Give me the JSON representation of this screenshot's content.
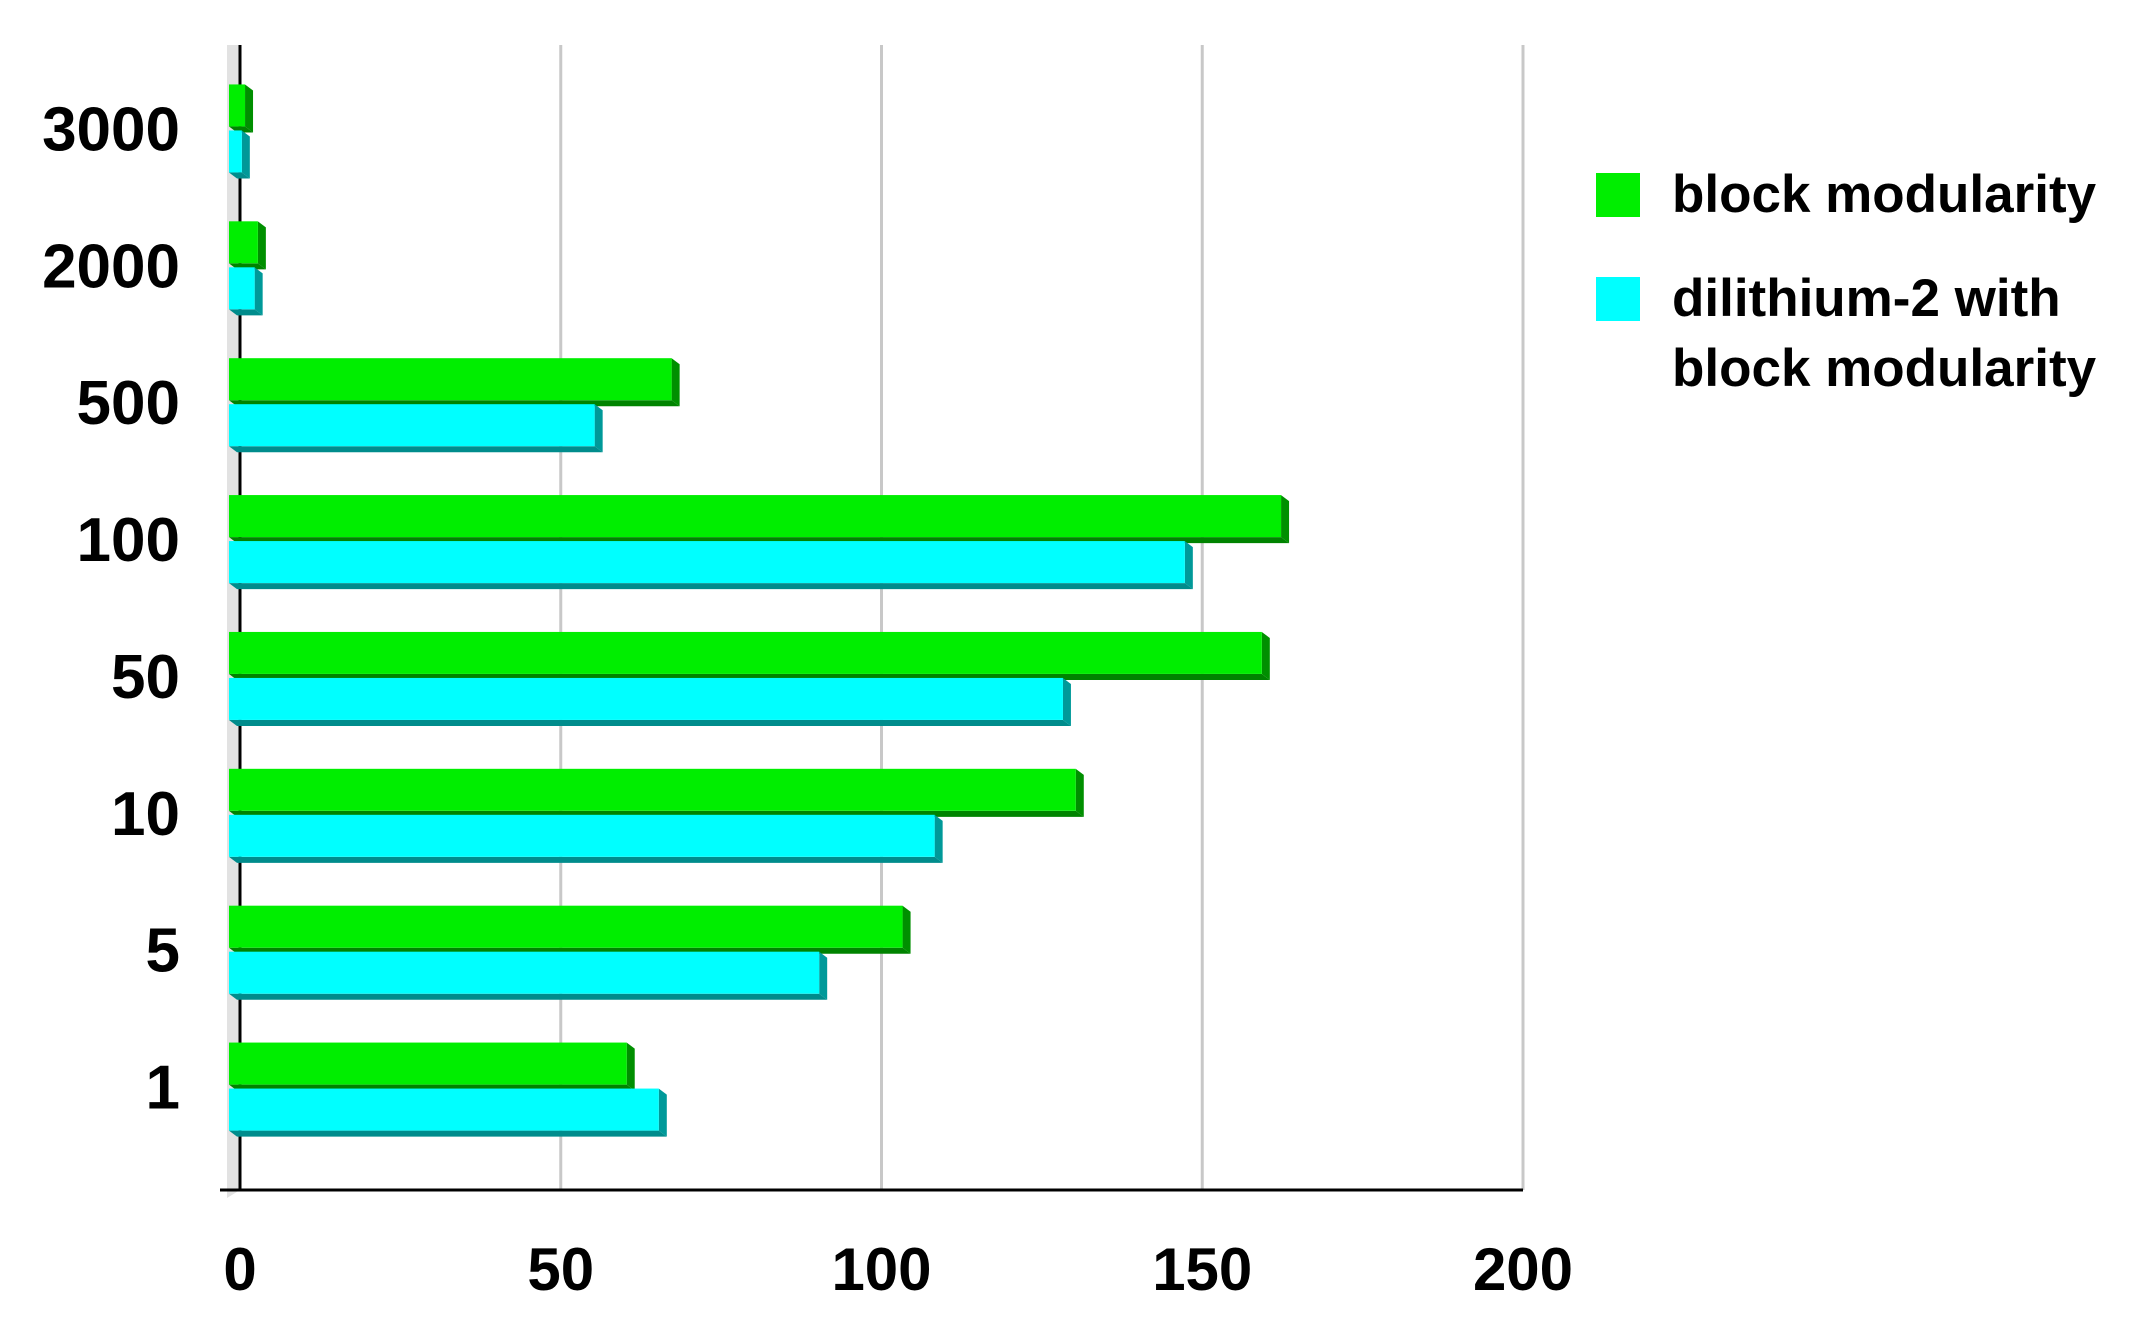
{
  "chart_data": {
    "type": "bar",
    "orientation": "horizontal",
    "categories": [
      "1",
      "5",
      "10",
      "50",
      "100",
      "500",
      "2000",
      "3000"
    ],
    "series": [
      {
        "name": "block modularity",
        "color": "#00ee00",
        "values": [
          62,
          105,
          132,
          161,
          164,
          69,
          4.5,
          2.5
        ]
      },
      {
        "name": "dilithium-2 with block modularity",
        "color": "#00ffff",
        "values": [
          67,
          92,
          110,
          130,
          149,
          57,
          4,
          2
        ]
      }
    ],
    "title": "",
    "xlabel": "",
    "ylabel": "",
    "xlim": [
      0,
      200
    ],
    "xticks": [
      "0",
      "50",
      "100",
      "150",
      "200"
    ],
    "grid": "vertical",
    "legend_position": "right"
  },
  "legend": {
    "items": [
      {
        "label": "block modularity",
        "color": "#00ee00"
      },
      {
        "label": "dilithium-2 with block modularity",
        "color": "#00ffff"
      }
    ]
  }
}
